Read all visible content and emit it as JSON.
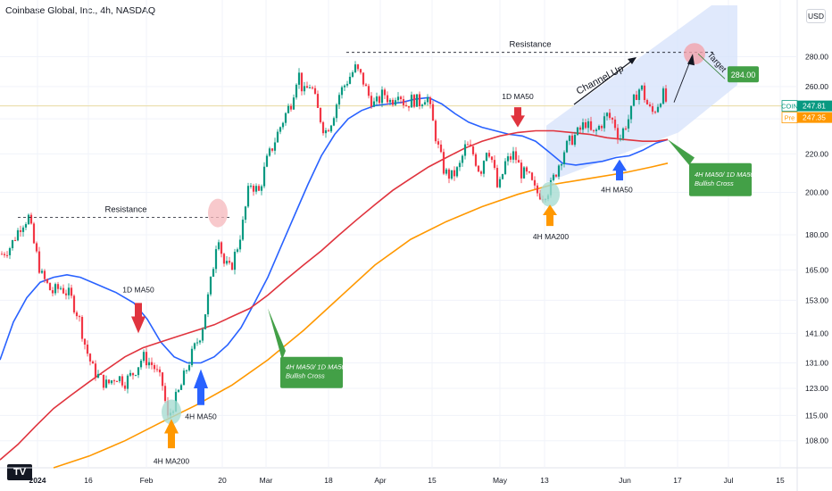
{
  "title": "Coinbase Global, Inc., 4h, NASDAQ",
  "currency_label": "USD",
  "chart_data": {
    "type": "line",
    "symbol": "COIN",
    "last_price": "247.81",
    "premarket_label": "Pre",
    "premarket_price": "247.35",
    "scale": "log",
    "grid": true,
    "x_tick_labels": [
      "2024",
      "16",
      "Feb",
      "20",
      "Mar",
      "18",
      "Apr",
      "15",
      "May",
      "13",
      "Jun",
      "17",
      "Jul",
      "15"
    ],
    "y_tick_labels": [
      "280.00",
      "260.00",
      "240.00",
      "220.00",
      "200.00",
      "180.00",
      "165.00",
      "153.00",
      "141.00",
      "131.00",
      "123.00",
      "115.00",
      "108.00"
    ],
    "y_ticks": [
      280,
      260,
      240,
      220,
      200,
      180,
      165,
      153,
      141,
      131,
      123,
      115,
      108
    ],
    "ylim": [
      101,
      318
    ],
    "series": [
      {
        "name": "4H MA50",
        "color": "#2962ff",
        "points": [
          [
            0,
            132
          ],
          [
            15,
            145
          ],
          [
            30,
            154
          ],
          [
            45,
            160
          ],
          [
            60,
            162
          ],
          [
            75,
            163
          ],
          [
            90,
            162
          ],
          [
            110,
            159
          ],
          [
            130,
            156
          ],
          [
            150,
            152
          ],
          [
            165,
            146
          ],
          [
            180,
            138
          ],
          [
            195,
            133
          ],
          [
            210,
            131
          ],
          [
            225,
            131
          ],
          [
            240,
            133
          ],
          [
            255,
            137
          ],
          [
            270,
            143
          ],
          [
            285,
            152
          ],
          [
            300,
            162
          ],
          [
            315,
            175
          ],
          [
            330,
            189
          ],
          [
            345,
            204
          ],
          [
            360,
            219
          ],
          [
            375,
            231
          ],
          [
            390,
            240
          ],
          [
            405,
            245
          ],
          [
            420,
            248
          ],
          [
            435,
            249
          ],
          [
            450,
            250
          ],
          [
            465,
            252
          ],
          [
            480,
            253
          ],
          [
            495,
            249
          ],
          [
            510,
            243
          ],
          [
            525,
            238
          ],
          [
            540,
            235
          ],
          [
            555,
            233
          ],
          [
            570,
            231
          ],
          [
            585,
            230
          ],
          [
            600,
            227
          ],
          [
            615,
            221
          ],
          [
            630,
            215
          ],
          [
            645,
            214
          ],
          [
            660,
            215
          ],
          [
            675,
            216
          ],
          [
            690,
            218
          ],
          [
            705,
            219
          ],
          [
            720,
            222
          ],
          [
            735,
            226
          ],
          [
            748,
            228
          ]
        ]
      },
      {
        "name": "1D MA50",
        "color": "#e0343e",
        "points": [
          [
            0,
            103
          ],
          [
            20,
            107
          ],
          [
            40,
            112
          ],
          [
            60,
            117
          ],
          [
            80,
            121
          ],
          [
            100,
            125
          ],
          [
            120,
            129
          ],
          [
            140,
            133
          ],
          [
            160,
            136
          ],
          [
            180,
            138
          ],
          [
            200,
            140
          ],
          [
            220,
            142
          ],
          [
            240,
            144
          ],
          [
            260,
            147
          ],
          [
            280,
            150
          ],
          [
            300,
            155
          ],
          [
            320,
            161
          ],
          [
            340,
            167
          ],
          [
            360,
            173
          ],
          [
            380,
            180
          ],
          [
            400,
            187
          ],
          [
            420,
            194
          ],
          [
            440,
            201
          ],
          [
            460,
            207
          ],
          [
            480,
            213
          ],
          [
            500,
            218
          ],
          [
            520,
            223
          ],
          [
            540,
            227
          ],
          [
            560,
            230
          ],
          [
            580,
            232
          ],
          [
            600,
            233
          ],
          [
            620,
            233
          ],
          [
            640,
            232
          ],
          [
            660,
            231
          ],
          [
            680,
            229
          ],
          [
            700,
            228
          ],
          [
            720,
            227
          ],
          [
            735,
            227
          ],
          [
            748,
            228
          ]
        ]
      },
      {
        "name": "4H MA200",
        "color": "#ff9800",
        "points": [
          [
            60,
            101
          ],
          [
            100,
            104
          ],
          [
            140,
            108
          ],
          [
            180,
            113
          ],
          [
            220,
            118
          ],
          [
            260,
            124
          ],
          [
            300,
            132
          ],
          [
            340,
            142
          ],
          [
            380,
            154
          ],
          [
            420,
            167
          ],
          [
            460,
            178
          ],
          [
            500,
            186
          ],
          [
            540,
            193
          ],
          [
            580,
            199
          ],
          [
            620,
            204
          ],
          [
            660,
            207
          ],
          [
            700,
            210
          ],
          [
            730,
            213
          ],
          [
            748,
            215
          ]
        ]
      }
    ],
    "price_path": [
      [
        0,
        171
      ],
      [
        12,
        175
      ],
      [
        24,
        185
      ],
      [
        32,
        188
      ],
      [
        38,
        176
      ],
      [
        46,
        163
      ],
      [
        58,
        156
      ],
      [
        68,
        158
      ],
      [
        78,
        155
      ],
      [
        88,
        147
      ],
      [
        96,
        136
      ],
      [
        104,
        129
      ],
      [
        112,
        126
      ],
      [
        120,
        124
      ],
      [
        130,
        127
      ],
      [
        140,
        125
      ],
      [
        150,
        128
      ],
      [
        160,
        133
      ],
      [
        172,
        130
      ],
      [
        182,
        124
      ],
      [
        188,
        114
      ],
      [
        194,
        118
      ],
      [
        202,
        123
      ],
      [
        210,
        130
      ],
      [
        218,
        136
      ],
      [
        226,
        142
      ],
      [
        232,
        152
      ],
      [
        238,
        164
      ],
      [
        244,
        182
      ],
      [
        250,
        168
      ],
      [
        258,
        165
      ],
      [
        266,
        175
      ],
      [
        272,
        185
      ],
      [
        280,
        205
      ],
      [
        290,
        200
      ],
      [
        298,
        215
      ],
      [
        306,
        225
      ],
      [
        316,
        238
      ],
      [
        326,
        250
      ],
      [
        334,
        270
      ],
      [
        340,
        255
      ],
      [
        348,
        262
      ],
      [
        356,
        245
      ],
      [
        364,
        232
      ],
      [
        372,
        240
      ],
      [
        380,
        255
      ],
      [
        390,
        265
      ],
      [
        398,
        272
      ],
      [
        406,
        265
      ],
      [
        412,
        255
      ],
      [
        420,
        248
      ],
      [
        430,
        256
      ],
      [
        438,
        250
      ],
      [
        446,
        258
      ],
      [
        454,
        248
      ],
      [
        462,
        252
      ],
      [
        470,
        250
      ],
      [
        478,
        255
      ],
      [
        484,
        240
      ],
      [
        490,
        225
      ],
      [
        498,
        210
      ],
      [
        506,
        208
      ],
      [
        514,
        212
      ],
      [
        522,
        225
      ],
      [
        530,
        220
      ],
      [
        538,
        210
      ],
      [
        546,
        225
      ],
      [
        552,
        215
      ],
      [
        558,
        200
      ],
      [
        566,
        215
      ],
      [
        576,
        220
      ],
      [
        584,
        210
      ],
      [
        592,
        208
      ],
      [
        600,
        200
      ],
      [
        608,
        199
      ],
      [
        616,
        202
      ],
      [
        624,
        212
      ],
      [
        632,
        222
      ],
      [
        640,
        228
      ],
      [
        648,
        232
      ],
      [
        656,
        238
      ],
      [
        664,
        230
      ],
      [
        672,
        236
      ],
      [
        680,
        242
      ],
      [
        688,
        238
      ],
      [
        694,
        228
      ],
      [
        700,
        236
      ],
      [
        706,
        242
      ],
      [
        712,
        255
      ],
      [
        718,
        260
      ],
      [
        724,
        250
      ],
      [
        730,
        243
      ],
      [
        736,
        248
      ],
      [
        742,
        256
      ],
      [
        748,
        248
      ]
    ]
  },
  "annotations": {
    "resistance_top": "Resistance",
    "resistance_left": "Resistance",
    "channel_up": "Channel Up",
    "target": "Target",
    "target_price": "284.00",
    "d1_ma50_left": "1D MA50",
    "d1_ma50_right": "1D MA50",
    "h4_ma50_left": "4H MA50",
    "h4_ma50_right": "4H MA50",
    "h4_ma200_left": "4H MA200",
    "h4_ma200_right": "4H MA200",
    "bull_cross_left_1": "4H MA50/ 1D MA50",
    "bull_cross_left_2": "Bullish Cross",
    "bull_cross_right_1": "4H MA50/ 1D MA50",
    "bull_cross_right_2": "Bullish Cross"
  },
  "colors": {
    "up": "#089981",
    "down": "#f23645",
    "channel": "#d6e2fb",
    "callout_green": "#43a047",
    "last_price_bg": "#089981",
    "premarket_bg": "#ff9800"
  }
}
